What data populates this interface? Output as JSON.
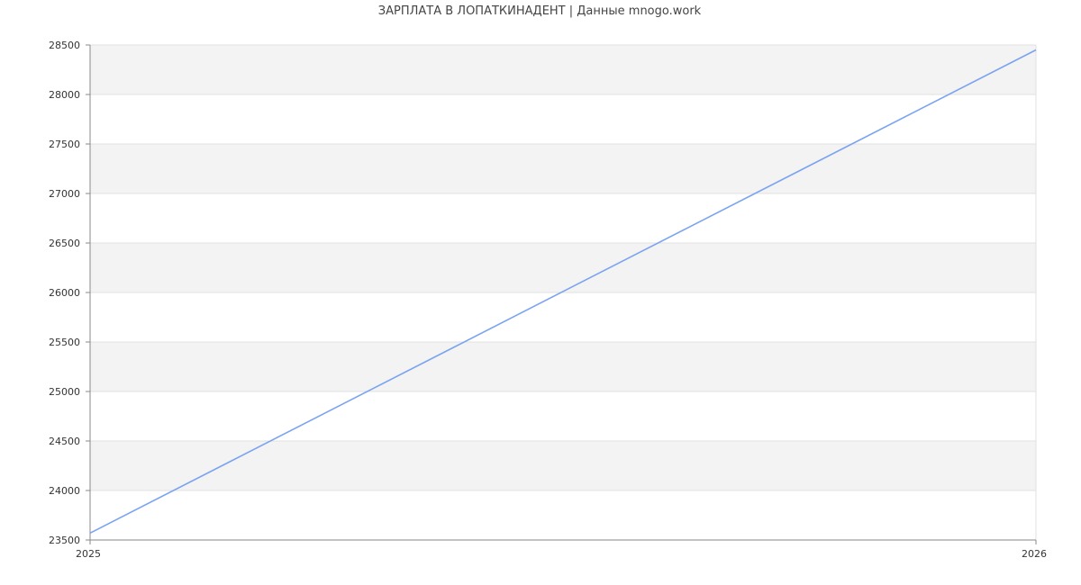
{
  "chart_data": {
    "type": "line",
    "title": "ЗАРПЛАТА В ЛОПАТКИНАДЕНТ | Данные mnogo.work",
    "xlabel": "",
    "ylabel": "",
    "x_tick_labels": [
      "2025",
      "2026"
    ],
    "y_tick_labels": [
      "23500",
      "24000",
      "24500",
      "25000",
      "25500",
      "26000",
      "26500",
      "27000",
      "27500",
      "28000",
      "28500"
    ],
    "ylim": [
      23500,
      28500
    ],
    "xlim": [
      2025,
      2026
    ],
    "grid": true,
    "banded_background": true,
    "series": [
      {
        "x": [
          2025,
          2026
        ],
        "values": [
          23570,
          28450
        ],
        "color": "#7aa3f2"
      }
    ],
    "colors": {
      "line": "#7aa3f2",
      "band": "#f3f3f3",
      "grid": "#e0e0e0",
      "axis": "#888888"
    }
  }
}
